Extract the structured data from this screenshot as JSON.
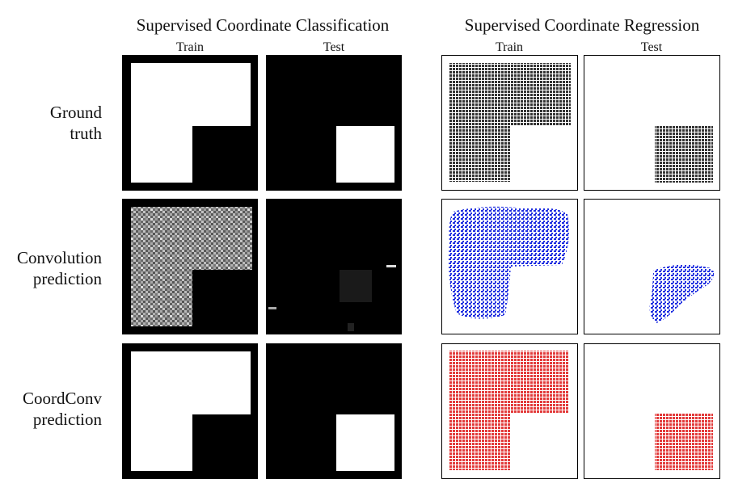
{
  "headers": {
    "classification": "Supervised Coordinate Classification",
    "regression": "Supervised Coordinate Regression"
  },
  "columns": {
    "classification": [
      "Train",
      "Test"
    ],
    "regression": [
      "Train",
      "Test"
    ]
  },
  "rows": [
    {
      "label_lines": [
        "Ground",
        "truth"
      ]
    },
    {
      "label_lines": [
        "Convolution",
        "prediction"
      ]
    },
    {
      "label_lines": [
        "CoordConv",
        "prediction"
      ]
    }
  ]
}
